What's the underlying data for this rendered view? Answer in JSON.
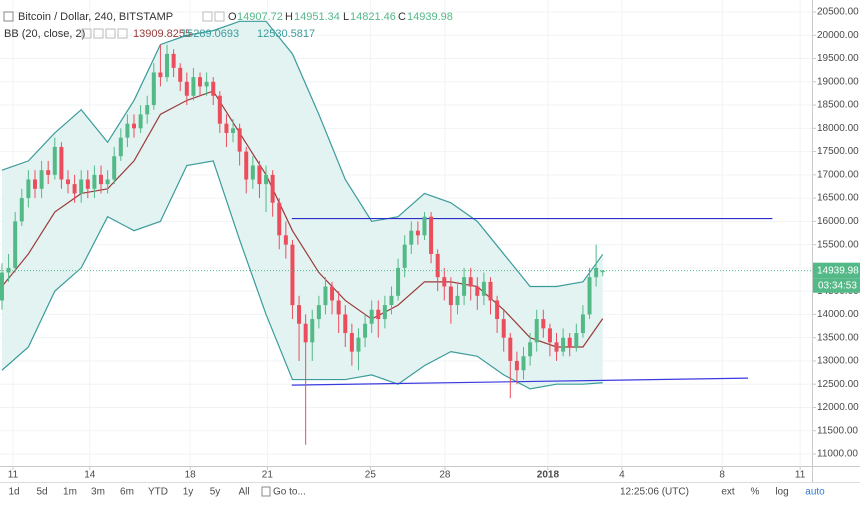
{
  "chart_data": {
    "type": "candlestick",
    "title": "Bitcoin / Dollar, 240, BITSTAMP",
    "ohlc_labels": [
      "O",
      "H",
      "L",
      "C"
    ],
    "indicator": "BB (20, close, 2)",
    "countdown": "03:34:53",
    "xlim": [
      -0.3,
      122.7
    ],
    "ylim": [
      10742,
      20758
    ],
    "grid": true,
    "xticks": [
      {
        "value": 1.67,
        "label": "11"
      },
      {
        "value": 13.3,
        "label": "14"
      },
      {
        "value": 28.5,
        "label": "18"
      },
      {
        "value": 40.2,
        "label": "21"
      },
      {
        "value": 55.8,
        "label": "25"
      },
      {
        "value": 67.1,
        "label": "28"
      },
      {
        "value": 82.7,
        "label": "2018"
      },
      {
        "value": 93.9,
        "label": "4"
      },
      {
        "value": 109.1,
        "label": "8"
      },
      {
        "value": 120.9,
        "label": "11"
      }
    ],
    "yticks": [
      {
        "value": 11000,
        "label": "11000.00"
      },
      {
        "value": 11500,
        "label": "11500.00"
      },
      {
        "value": 12000,
        "label": "12000.00"
      },
      {
        "value": 12500,
        "label": "12500.00"
      },
      {
        "value": 13000,
        "label": "13000.00"
      },
      {
        "value": 13500,
        "label": "13500.00"
      },
      {
        "value": 14000,
        "label": "14000.00"
      },
      {
        "value": 14500,
        "label": "14500.00"
      },
      {
        "value": 15000,
        "label": "15000.00"
      },
      {
        "value": 15500,
        "label": "15500.00"
      },
      {
        "value": 16000,
        "label": "16000.00"
      },
      {
        "value": 16500,
        "label": "16500.00"
      },
      {
        "value": 17000,
        "label": "17000.00"
      },
      {
        "value": 17500,
        "label": "17500.00"
      },
      {
        "value": 18000,
        "label": "18000.00"
      },
      {
        "value": 18500,
        "label": "18500.00"
      },
      {
        "value": 19000,
        "label": "19000.00"
      },
      {
        "value": 19500,
        "label": "19500.00"
      },
      {
        "value": 20000,
        "label": "20000.00"
      },
      {
        "value": 20500,
        "label": "20500.00"
      }
    ],
    "candles": {
      "up_color": "#53b987",
      "down_color": "#eb4d5c",
      "open": [
        14300,
        14900,
        15000,
        16000,
        16500,
        16900,
        16700,
        17100,
        17000,
        17600,
        16900,
        16800,
        16600,
        16900,
        16700,
        17000,
        16800,
        16900,
        17400,
        17800,
        18100,
        18000,
        18300,
        18500,
        19200,
        19100,
        19600,
        19300,
        19000,
        18700,
        19100,
        18900,
        19000,
        18700,
        18100,
        17900,
        18000,
        17500,
        16900,
        17200,
        16800,
        17000,
        16400,
        15700,
        15500,
        14200,
        13800,
        13400,
        13900,
        14200,
        14600,
        14300,
        14000,
        13600,
        13200,
        13500,
        13800,
        14100,
        13900,
        14200,
        14400,
        15000,
        15500,
        15800,
        15700,
        16100,
        15300,
        14800,
        14600,
        14200,
        14400,
        14800,
        14600,
        14400,
        14700,
        14300,
        13900,
        13500,
        13000,
        12800,
        13100,
        13400,
        13900,
        13700,
        13400,
        13200,
        13500,
        13300,
        13600,
        14000,
        14800,
        14907.72
      ],
      "high": [
        15100,
        15300,
        16200,
        16700,
        17100,
        17100,
        17300,
        17300,
        17800,
        17700,
        17100,
        17000,
        17100,
        17100,
        17200,
        17200,
        17100,
        17600,
        18000,
        18300,
        18300,
        18500,
        18700,
        19400,
        19800,
        19800,
        19700,
        19400,
        19200,
        19300,
        19200,
        19200,
        19100,
        18800,
        18300,
        18200,
        18100,
        17600,
        17400,
        17300,
        17200,
        17100,
        16500,
        16000,
        15600,
        14400,
        14000,
        14100,
        14400,
        14800,
        14700,
        14500,
        14200,
        13800,
        13700,
        14000,
        14300,
        14300,
        14400,
        14600,
        15200,
        15700,
        16000,
        16000,
        16200,
        16200,
        15400,
        15000,
        14800,
        14700,
        15000,
        15000,
        14800,
        14900,
        14800,
        14400,
        14100,
        13600,
        13200,
        13300,
        13600,
        14100,
        14100,
        13800,
        13600,
        13700,
        13600,
        13800,
        14200,
        15000,
        15500,
        14951.34
      ],
      "low": [
        14100,
        14700,
        14900,
        15900,
        16300,
        16500,
        16500,
        16800,
        16900,
        16700,
        16600,
        16400,
        16400,
        16500,
        16500,
        16600,
        16600,
        16800,
        17300,
        17600,
        17800,
        17900,
        18100,
        18400,
        18900,
        19000,
        19100,
        18800,
        18500,
        18600,
        18700,
        18700,
        18500,
        17900,
        17600,
        17700,
        17200,
        16600,
        16700,
        16500,
        16200,
        16100,
        15400,
        15200,
        13900,
        13000,
        11200,
        13000,
        13700,
        14000,
        14000,
        13600,
        13300,
        12900,
        12800,
        13300,
        13600,
        13500,
        13700,
        14000,
        14300,
        14800,
        15300,
        15500,
        15600,
        15100,
        14500,
        14300,
        13800,
        14000,
        14200,
        14300,
        14100,
        14200,
        14000,
        13600,
        13200,
        12200,
        12500,
        12600,
        12900,
        13200,
        13500,
        13100,
        13000,
        13100,
        13100,
        13200,
        13500,
        13900,
        14600,
        14821.46
      ],
      "close": [
        14900,
        15000,
        16000,
        16500,
        16900,
        16700,
        17100,
        17000,
        17600,
        16900,
        16800,
        16600,
        16900,
        16700,
        17000,
        16800,
        16900,
        17400,
        17800,
        18100,
        18000,
        18300,
        18500,
        19200,
        19100,
        19600,
        19300,
        19000,
        18700,
        19100,
        18900,
        19000,
        18700,
        18100,
        17900,
        18000,
        17500,
        16900,
        17200,
        16800,
        17000,
        16400,
        15700,
        15500,
        14200,
        13800,
        13400,
        13900,
        14200,
        14600,
        14300,
        14000,
        13600,
        13200,
        13500,
        13800,
        14100,
        13900,
        14200,
        14400,
        15000,
        15500,
        15800,
        15700,
        16100,
        15300,
        14800,
        14600,
        14200,
        14400,
        14800,
        14600,
        14400,
        14700,
        14300,
        13900,
        13500,
        13000,
        12800,
        13100,
        13400,
        13900,
        13700,
        13400,
        13200,
        13500,
        13300,
        13600,
        14000,
        14800,
        15000,
        14939.98
      ]
    },
    "bands": {
      "fill": "#e3f3f2",
      "x": [
        0,
        4,
        8,
        12,
        16,
        20,
        24,
        28,
        32,
        36,
        40,
        44,
        48,
        52,
        56,
        60,
        64,
        68,
        72,
        76,
        80,
        84,
        88,
        91
      ],
      "basis": {
        "color": "#9a3b3b",
        "values": [
          14600,
          15300,
          16200,
          16600,
          16700,
          17300,
          18300,
          18600,
          18800,
          17900,
          17000,
          15800,
          14900,
          14300,
          13900,
          14200,
          14700,
          14700,
          14600,
          14100,
          13500,
          13300,
          13300,
          13909.8255
        ]
      },
      "upper": {
        "color": "#3a9c9a",
        "values": [
          17100,
          17300,
          17900,
          18400,
          17700,
          18600,
          19800,
          20000,
          20100,
          20300,
          20300,
          19600,
          18300,
          16900,
          16000,
          16100,
          16600,
          16400,
          16000,
          15300,
          14600,
          14600,
          14700,
          15289.0693
        ]
      },
      "lower": {
        "color": "#3a9c9a",
        "values": [
          12800,
          13300,
          14500,
          15000,
          16100,
          15800,
          16000,
          17200,
          17300,
          15600,
          14000,
          12600,
          12600,
          12600,
          12700,
          12500,
          12900,
          13200,
          13100,
          12700,
          12400,
          12500,
          12500,
          12530.5817
        ]
      }
    },
    "trend_lines": [
      {
        "color": "#2c2cc8",
        "x": [
          43.9,
          116.7
        ],
        "values": [
          16060,
          16060
        ]
      },
      {
        "color": "#3a3ae0",
        "x": [
          43.9,
          113.0
        ],
        "values": [
          12480,
          12630
        ]
      }
    ]
  },
  "ui": {
    "ranges": [
      "1d",
      "5d",
      "1m",
      "3m",
      "6m",
      "YTD",
      "1y",
      "5y",
      "All"
    ],
    "goto": "Go to...",
    "clock": "12:25:06 (UTC)",
    "toggles": [
      "ext",
      "%",
      "log",
      "auto"
    ]
  }
}
